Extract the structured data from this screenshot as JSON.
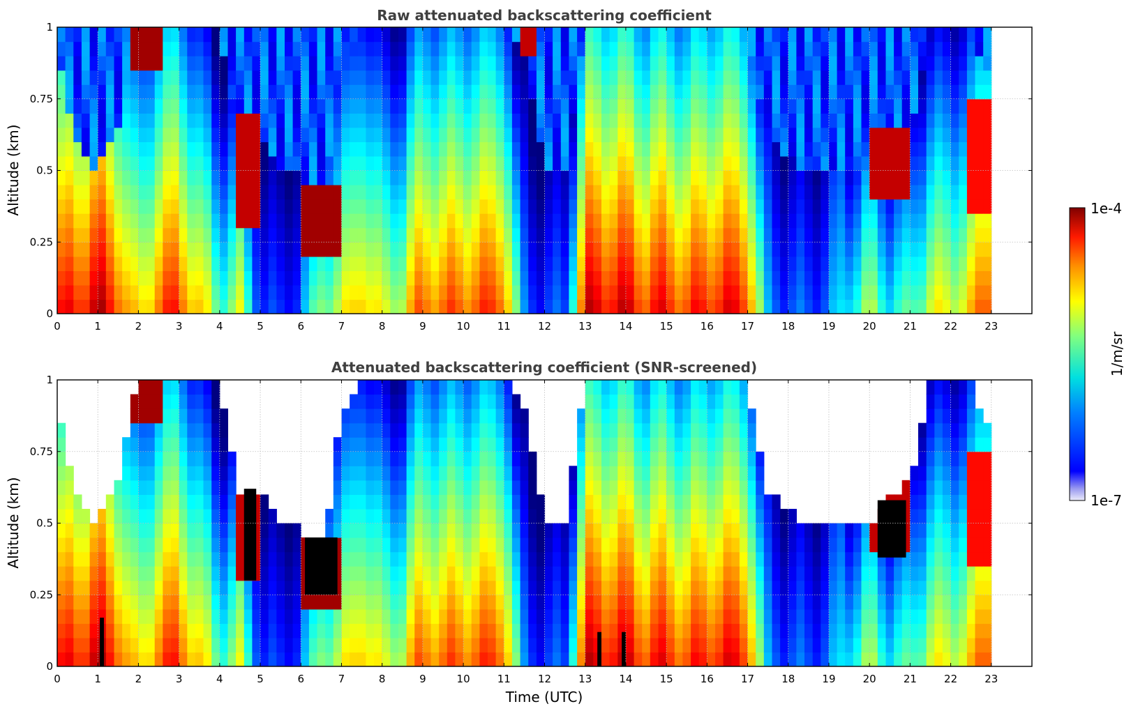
{
  "chart_data": [
    {
      "type": "heatmap",
      "title": "Raw attenuated backscattering coefficient",
      "xlabel": "",
      "ylabel": "Altitude (km)",
      "xlim": [
        0,
        24
      ],
      "ylim": [
        0,
        1
      ],
      "x_ticks": [
        "0",
        "1",
        "2",
        "3",
        "4",
        "5",
        "6",
        "7",
        "8",
        "9",
        "10",
        "11",
        "12",
        "13",
        "14",
        "15",
        "16",
        "17",
        "18",
        "19",
        "20",
        "21",
        "22",
        "23"
      ],
      "y_ticks": [
        "0",
        "0.25",
        "0.5",
        "0.75",
        "1"
      ],
      "y_tick_values": [
        0,
        0.25,
        0.5,
        0.75,
        1
      ],
      "grid": true,
      "colormap": "jet",
      "value_scale": "log",
      "clim": [
        1e-07,
        0.0001
      ],
      "data_extent_hours": [
        0,
        23
      ],
      "profile_knots_hours": [
        0,
        0.5,
        1,
        1.5,
        2,
        2.5,
        3,
        3.5,
        4,
        4.5,
        5,
        5.5,
        6,
        6.5,
        7,
        7.5,
        8,
        8.5,
        9,
        9.5,
        10,
        10.5,
        11,
        11.5,
        12,
        12.5,
        13,
        13.5,
        14,
        14.5,
        15,
        15.5,
        16,
        16.5,
        17,
        17.5,
        18,
        18.5,
        19,
        19.5,
        20,
        20.5,
        21,
        21.5,
        22,
        22.5,
        23
      ],
      "surface_log10_backscatter": [
        -4.5,
        -4.4,
        -4.2,
        -4.5,
        -5.2,
        -4.6,
        -4.5,
        -5.0,
        -5.6,
        -5.3,
        -6.4,
        -6.6,
        -6.3,
        -5.4,
        -5.3,
        -4.8,
        -5.3,
        -5.2,
        -4.6,
        -4.7,
        -4.6,
        -4.6,
        -4.5,
        -6.3,
        -6.5,
        -6.4,
        -4.3,
        -4.3,
        -4.3,
        -4.5,
        -4.4,
        -4.6,
        -4.4,
        -4.4,
        -4.4,
        -6.2,
        -6.4,
        -6.4,
        -6.3,
        -5.8,
        -5.4,
        -5.8,
        -5.7,
        -5.2,
        -5.2,
        -5.0,
        -4.4
      ],
      "clear_air_top_km": [
        0.9,
        0.6,
        0.5,
        0.65,
        1.0,
        1.0,
        1.0,
        1.0,
        1.0,
        0.6,
        0.6,
        0.5,
        0.5,
        0.3,
        0.9,
        1.0,
        1.0,
        1.0,
        1.0,
        1.0,
        1.0,
        1.0,
        1.0,
        0.9,
        0.5,
        0.5,
        1.0,
        1.0,
        1.0,
        1.0,
        1.0,
        1.0,
        1.0,
        1.0,
        1.0,
        0.6,
        0.55,
        0.5,
        0.5,
        0.5,
        0.5,
        0.6,
        0.65,
        1.0,
        1.0,
        1.0,
        0.8
      ],
      "elevated_layers": [
        {
          "x": [
            1.9,
            2.6
          ],
          "y": [
            0.85,
            1.0
          ],
          "log10_value": -4.1
        },
        {
          "x": [
            4.5,
            5.0
          ],
          "y": [
            0.3,
            0.7
          ],
          "log10_value": -4.2
        },
        {
          "x": [
            6.0,
            7.0
          ],
          "y": [
            0.2,
            0.45
          ],
          "log10_value": -4.1
        },
        {
          "x": [
            11.5,
            11.8
          ],
          "y": [
            0.9,
            1.0
          ],
          "log10_value": -4.2
        },
        {
          "x": [
            20.1,
            21.0
          ],
          "y": [
            0.4,
            0.65
          ],
          "log10_value": -4.2
        },
        {
          "x": [
            22.3,
            23.0
          ],
          "y": [
            0.35,
            0.75
          ],
          "log10_value": -4.4
        }
      ]
    },
    {
      "type": "heatmap",
      "title": "Attenuated backscattering coefficient (SNR-screened)",
      "xlabel": "Time (UTC)",
      "ylabel": "Altitude (km)",
      "xlim": [
        0,
        24
      ],
      "ylim": [
        0,
        1
      ],
      "x_ticks": [
        "0",
        "1",
        "2",
        "3",
        "4",
        "5",
        "6",
        "7",
        "8",
        "9",
        "10",
        "11",
        "12",
        "13",
        "14",
        "15",
        "16",
        "17",
        "18",
        "19",
        "20",
        "21",
        "22",
        "23"
      ],
      "y_ticks": [
        "0",
        "0.25",
        "0.5",
        "0.75",
        "1"
      ],
      "y_tick_values": [
        0,
        0.25,
        0.5,
        0.75,
        1
      ],
      "grid": true,
      "colormap": "jet",
      "value_scale": "log",
      "clim": [
        1e-07,
        0.0001
      ],
      "data_extent_hours": [
        0,
        23
      ],
      "saturated_regions_color": "#000000",
      "saturated_regions": [
        {
          "x": [
            1.05,
            1.15
          ],
          "y": [
            0.0,
            0.17
          ]
        },
        {
          "x": [
            4.6,
            4.9
          ],
          "y": [
            0.3,
            0.62
          ]
        },
        {
          "x": [
            6.1,
            6.9
          ],
          "y": [
            0.25,
            0.45
          ]
        },
        {
          "x": [
            20.2,
            20.9
          ],
          "y": [
            0.38,
            0.58
          ]
        },
        {
          "x": [
            13.3,
            13.4
          ],
          "y": [
            0.0,
            0.12
          ]
        },
        {
          "x": [
            13.9,
            14.0
          ],
          "y": [
            0.0,
            0.12
          ]
        }
      ]
    }
  ],
  "colorbar": {
    "label": "1/m/sr",
    "min_label": "1e-7",
    "max_label": "1e-4",
    "colormap": "jet"
  }
}
